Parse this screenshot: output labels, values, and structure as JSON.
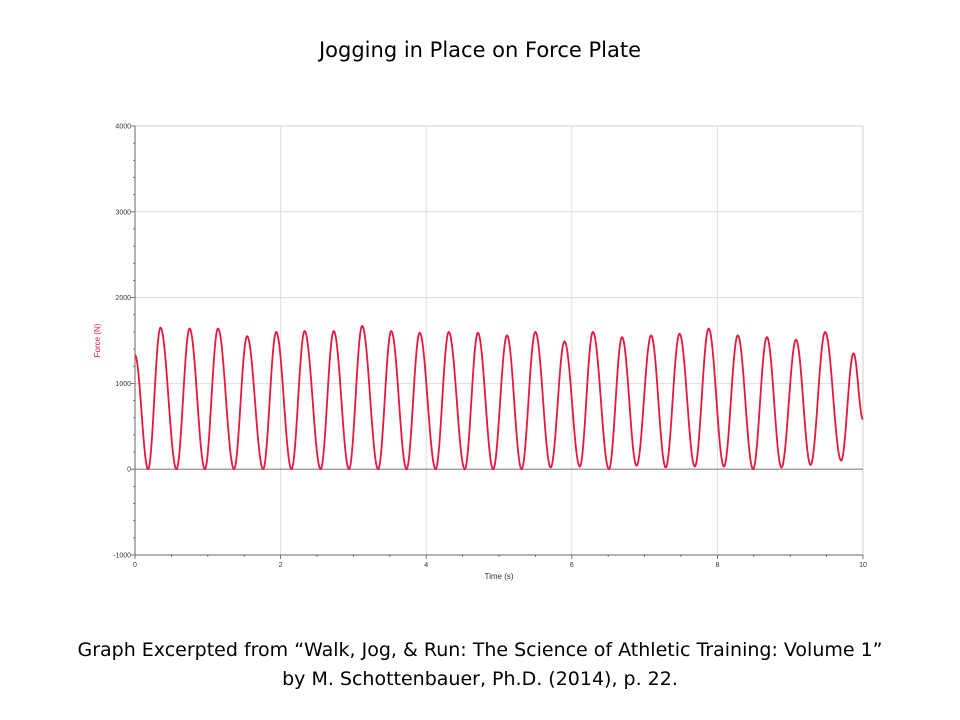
{
  "slide": {
    "title": "Jogging in Place on Force Plate",
    "caption_line1": "Graph Excerpted from “Walk, Jog, & Run: The Science of Athletic Training: Volume 1”",
    "caption_line2": "by M. Schottenbauer, Ph.D. (2014), p. 22."
  },
  "chart_data": {
    "type": "line",
    "title": "Jogging in Place on Force Plate",
    "xlabel": "Time (s)",
    "ylabel": "Force (N)",
    "xlim": [
      0,
      10
    ],
    "ylim": [
      -1000,
      4000
    ],
    "x_ticks": [
      0,
      2,
      4,
      6,
      8,
      10
    ],
    "y_ticks": [
      -1000,
      0,
      1000,
      2000,
      3000,
      4000
    ],
    "grid": true,
    "zero_line": true,
    "series": [
      {
        "color": "#e8173e",
        "peaks": [
          {
            "t": 0.35,
            "f": 1650
          },
          {
            "t": 0.75,
            "f": 1640
          },
          {
            "t": 1.14,
            "f": 1640
          },
          {
            "t": 1.54,
            "f": 1550
          },
          {
            "t": 1.94,
            "f": 1600
          },
          {
            "t": 2.33,
            "f": 1610
          },
          {
            "t": 2.73,
            "f": 1610
          },
          {
            "t": 3.12,
            "f": 1670
          },
          {
            "t": 3.52,
            "f": 1610
          },
          {
            "t": 3.91,
            "f": 1590
          },
          {
            "t": 4.31,
            "f": 1600
          },
          {
            "t": 4.71,
            "f": 1590
          },
          {
            "t": 5.11,
            "f": 1560
          },
          {
            "t": 5.5,
            "f": 1600
          },
          {
            "t": 5.9,
            "f": 1490
          },
          {
            "t": 6.29,
            "f": 1600
          },
          {
            "t": 6.69,
            "f": 1540
          },
          {
            "t": 7.09,
            "f": 1560
          },
          {
            "t": 7.48,
            "f": 1580
          },
          {
            "t": 7.88,
            "f": 1640
          },
          {
            "t": 8.28,
            "f": 1560
          },
          {
            "t": 8.68,
            "f": 1540
          },
          {
            "t": 9.08,
            "f": 1510
          },
          {
            "t": 9.48,
            "f": 1600
          },
          {
            "t": 9.87,
            "f": 1350
          }
        ],
        "troughs": [
          {
            "t": 0.18,
            "f": 0
          },
          {
            "t": 0.57,
            "f": 0
          },
          {
            "t": 0.96,
            "f": 0
          },
          {
            "t": 1.36,
            "f": 0
          },
          {
            "t": 1.76,
            "f": 0
          },
          {
            "t": 2.15,
            "f": 0
          },
          {
            "t": 2.55,
            "f": 0
          },
          {
            "t": 2.94,
            "f": 0
          },
          {
            "t": 3.34,
            "f": 0
          },
          {
            "t": 3.73,
            "f": 0
          },
          {
            "t": 4.13,
            "f": 0
          },
          {
            "t": 4.53,
            "f": 0
          },
          {
            "t": 4.92,
            "f": 0
          },
          {
            "t": 5.31,
            "f": 0
          },
          {
            "t": 5.71,
            "f": 20
          },
          {
            "t": 6.11,
            "f": 30
          },
          {
            "t": 6.51,
            "f": 0
          },
          {
            "t": 6.89,
            "f": 40
          },
          {
            "t": 7.29,
            "f": 20
          },
          {
            "t": 7.69,
            "f": 30
          },
          {
            "t": 8.09,
            "f": 30
          },
          {
            "t": 8.49,
            "f": 0
          },
          {
            "t": 8.88,
            "f": 20
          },
          {
            "t": 9.28,
            "f": 50
          },
          {
            "t": 9.7,
            "f": 100
          }
        ],
        "start": {
          "t": 0.0,
          "f": 1330
        },
        "end": {
          "t": 10.0,
          "f": 580
        }
      }
    ]
  }
}
